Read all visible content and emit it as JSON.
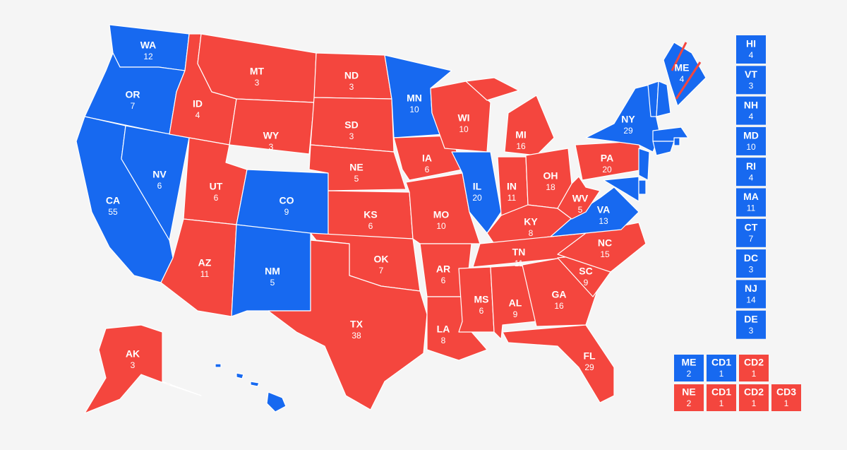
{
  "states": [
    {
      "abbr": "WA",
      "votes": 12,
      "color": "#1769f0"
    },
    {
      "abbr": "OR",
      "votes": 7,
      "color": "#1769f0"
    },
    {
      "abbr": "CA",
      "votes": 55,
      "color": "#1769f0"
    },
    {
      "abbr": "NV",
      "votes": 6,
      "color": "#1769f0"
    },
    {
      "abbr": "ID",
      "votes": 4,
      "color": "#f4463e"
    },
    {
      "abbr": "MT",
      "votes": 3,
      "color": "#f4463e"
    },
    {
      "abbr": "WY",
      "votes": 3,
      "color": "#f4463e"
    },
    {
      "abbr": "UT",
      "votes": 6,
      "color": "#f4463e"
    },
    {
      "abbr": "CO",
      "votes": 9,
      "color": "#1769f0"
    },
    {
      "abbr": "AZ",
      "votes": 11,
      "color": "#f4463e"
    },
    {
      "abbr": "NM",
      "votes": 5,
      "color": "#1769f0"
    },
    {
      "abbr": "ND",
      "votes": 3,
      "color": "#f4463e"
    },
    {
      "abbr": "SD",
      "votes": 3,
      "color": "#f4463e"
    },
    {
      "abbr": "NE",
      "votes": 5,
      "color": "#f4463e"
    },
    {
      "abbr": "KS",
      "votes": 6,
      "color": "#f4463e"
    },
    {
      "abbr": "OK",
      "votes": 7,
      "color": "#f4463e"
    },
    {
      "abbr": "TX",
      "votes": 38,
      "color": "#f4463e"
    },
    {
      "abbr": "MN",
      "votes": 10,
      "color": "#1769f0"
    },
    {
      "abbr": "IA",
      "votes": 6,
      "color": "#f4463e"
    },
    {
      "abbr": "MO",
      "votes": 10,
      "color": "#f4463e"
    },
    {
      "abbr": "AR",
      "votes": 6,
      "color": "#f4463e"
    },
    {
      "abbr": "LA",
      "votes": 8,
      "color": "#f4463e"
    },
    {
      "abbr": "WI",
      "votes": 10,
      "color": "#f4463e"
    },
    {
      "abbr": "IL",
      "votes": 20,
      "color": "#1769f0"
    },
    {
      "abbr": "MI",
      "votes": 16,
      "color": "#f4463e"
    },
    {
      "abbr": "IN",
      "votes": 11,
      "color": "#f4463e"
    },
    {
      "abbr": "OH",
      "votes": 18,
      "color": "#f4463e"
    },
    {
      "abbr": "KY",
      "votes": 8,
      "color": "#f4463e"
    },
    {
      "abbr": "TN",
      "votes": 11,
      "color": "#f4463e"
    },
    {
      "abbr": "MS",
      "votes": 6,
      "color": "#f4463e"
    },
    {
      "abbr": "AL",
      "votes": 9,
      "color": "#f4463e"
    },
    {
      "abbr": "GA",
      "votes": 16,
      "color": "#f4463e"
    },
    {
      "abbr": "FL",
      "votes": 29,
      "color": "#f4463e"
    },
    {
      "abbr": "SC",
      "votes": 9,
      "color": "#f4463e"
    },
    {
      "abbr": "NC",
      "votes": 15,
      "color": "#f4463e"
    },
    {
      "abbr": "VA",
      "votes": 13,
      "color": "#1769f0"
    },
    {
      "abbr": "WV",
      "votes": 5,
      "color": "#f4463e"
    },
    {
      "abbr": "PA",
      "votes": 20,
      "color": "#f4463e"
    },
    {
      "abbr": "NY",
      "votes": 29,
      "color": "#1769f0"
    },
    {
      "abbr": "ME",
      "votes": 4,
      "color": "#1769f0"
    },
    {
      "abbr": "AK",
      "votes": 3,
      "color": "#f4463e"
    }
  ],
  "small_states": [
    {
      "abbr": "HI",
      "votes": 4,
      "color": "#1769f0"
    },
    {
      "abbr": "VT",
      "votes": 3,
      "color": "#1769f0"
    },
    {
      "abbr": "NH",
      "votes": 4,
      "color": "#1769f0"
    },
    {
      "abbr": "MD",
      "votes": 10,
      "color": "#1769f0"
    },
    {
      "abbr": "RI",
      "votes": 4,
      "color": "#1769f0"
    },
    {
      "abbr": "MA",
      "votes": 11,
      "color": "#1769f0"
    },
    {
      "abbr": "CT",
      "votes": 7,
      "color": "#1769f0"
    },
    {
      "abbr": "DC",
      "votes": 3,
      "color": "#1769f0"
    },
    {
      "abbr": "NJ",
      "votes": 14,
      "color": "#1769f0"
    },
    {
      "abbr": "DE",
      "votes": 3,
      "color": "#1769f0"
    }
  ],
  "split_states": [
    {
      "abbr": "ME",
      "votes": 2,
      "color": "#1769f0",
      "districts": [
        {
          "name": "CD1",
          "votes": 1,
          "color": "#1769f0"
        },
        {
          "name": "CD2",
          "votes": 1,
          "color": "#f4463e"
        }
      ]
    },
    {
      "abbr": "NE",
      "votes": 2,
      "color": "#f4463e",
      "districts": [
        {
          "name": "CD1",
          "votes": 1,
          "color": "#f4463e"
        },
        {
          "name": "CD2",
          "votes": 1,
          "color": "#f4463e"
        },
        {
          "name": "CD3",
          "votes": 1,
          "color": "#f4463e"
        }
      ]
    }
  ]
}
